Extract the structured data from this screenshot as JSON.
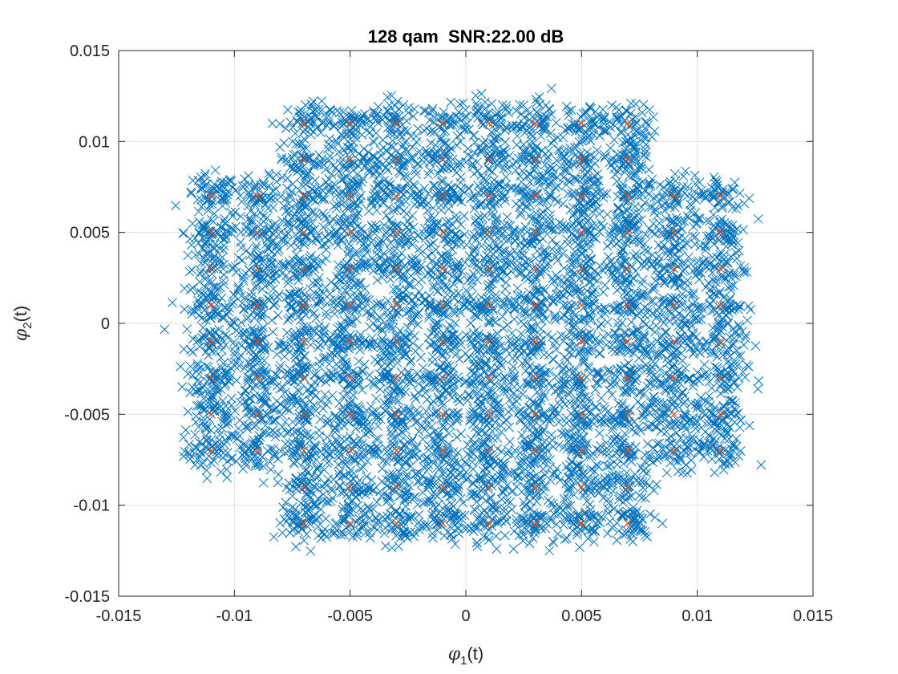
{
  "chart_data": {
    "type": "scatter",
    "title": "128 qam  SNR:22.00 dB",
    "xlabel": {
      "symbol": "φ",
      "subscript": "1",
      "suffix": "(t)"
    },
    "ylabel": {
      "symbol": "φ",
      "subscript": "2",
      "suffix": "(t)"
    },
    "xlim": [
      -0.015,
      0.015
    ],
    "ylim": [
      -0.015,
      0.015
    ],
    "xticks": [
      -0.015,
      -0.01,
      -0.005,
      0,
      0.005,
      0.01,
      0.015
    ],
    "yticks": [
      -0.015,
      -0.01,
      -0.005,
      0,
      0.005,
      0.01,
      0.015
    ],
    "xtick_labels": [
      "-0.015",
      "-0.01",
      "-0.005",
      "0",
      "0.005",
      "0.01",
      "0.015"
    ],
    "ytick_labels": [
      "-0.015",
      "-0.01",
      "-0.005",
      "0",
      "0.005",
      "0.01",
      "0.015"
    ],
    "grid": true,
    "marker": "x",
    "series": [
      {
        "role": "received",
        "color": "#0072BD",
        "noise_sigma": 0.00058,
        "points_per_symbol": 55
      },
      {
        "role": "reference",
        "color": "#D95319",
        "constellation": {
          "inner_levels": [
            -0.011,
            -0.009,
            -0.007,
            -0.005,
            -0.003,
            -0.001,
            0.001,
            0.003,
            0.005,
            0.007,
            0.009,
            0.011
          ],
          "i_outer_limit": 0.007,
          "q_outer_limit": 0.007
        }
      }
    ]
  }
}
